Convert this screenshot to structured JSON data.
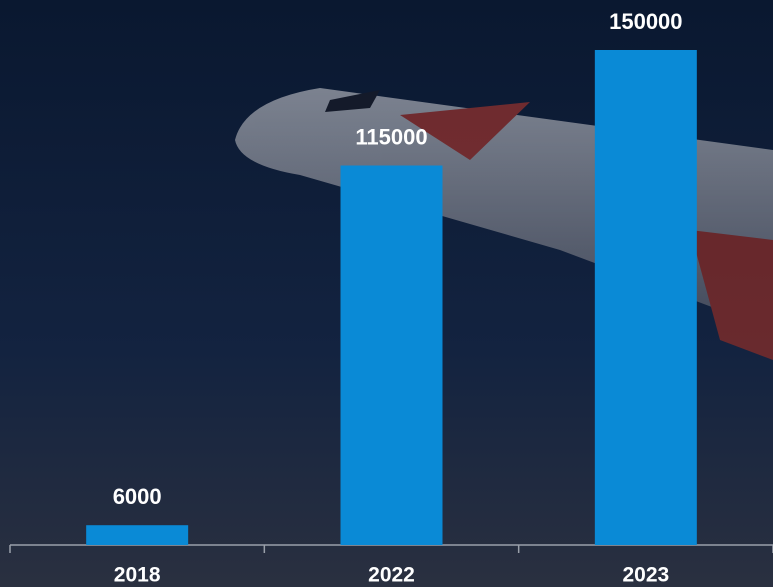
{
  "chart_data": {
    "type": "bar",
    "categories": [
      "2018",
      "2022",
      "2023"
    ],
    "values": [
      6000,
      115000,
      150000
    ],
    "color": "#0a8ad6",
    "ylim": [
      0,
      150000
    ]
  }
}
